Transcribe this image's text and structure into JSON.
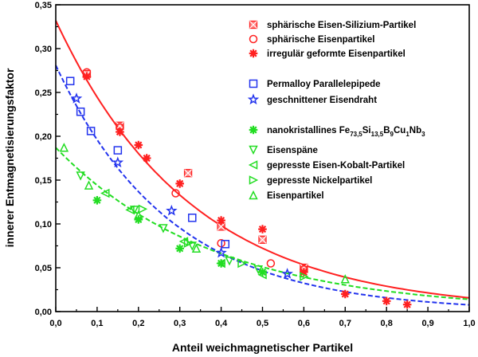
{
  "chart_data": {
    "type": "scatter",
    "title": "",
    "xlabel": "Anteil weichmagnetischer Partikel",
    "ylabel": "innerer Entmagnetisierungsfaktor",
    "xlim": [
      0.0,
      1.0
    ],
    "ylim": [
      0.0,
      0.35
    ],
    "x_ticks": [
      "0,0",
      "0,1",
      "0,2",
      "0,3",
      "0,4",
      "0,5",
      "0,6",
      "0,7",
      "0,8",
      "0,9",
      "1,0"
    ],
    "y_ticks": [
      "0,00",
      "0,05",
      "0,10",
      "0,15",
      "0,20",
      "0,25",
      "0,30",
      "0,35"
    ],
    "grid": false,
    "legend_position": "top-right",
    "colors": {
      "red": "#ff2020",
      "blue": "#2233ee",
      "green": "#22dd22"
    },
    "series": [
      {
        "name": "sphärische Eisen-Silizium-Partikel",
        "color": "#ff2020",
        "marker": "boxed-x",
        "x": [
          0.075,
          0.155,
          0.32,
          0.4,
          0.5,
          0.6
        ],
        "y": [
          0.271,
          0.212,
          0.158,
          0.097,
          0.082,
          0.05
        ]
      },
      {
        "name": "sphärische Eisenpartikel",
        "color": "#ff2020",
        "marker": "circle",
        "x": [
          0.075,
          0.155,
          0.29,
          0.4,
          0.52,
          0.6
        ],
        "y": [
          0.273,
          0.21,
          0.135,
          0.078,
          0.055,
          0.048
        ]
      },
      {
        "name": "irregulär geformte Eisenpartikel",
        "color": "#ff2020",
        "marker": "star",
        "x": [
          0.075,
          0.155,
          0.2,
          0.22,
          0.3,
          0.4,
          0.5,
          0.6,
          0.7,
          0.8,
          0.85
        ],
        "y": [
          0.268,
          0.205,
          0.19,
          0.175,
          0.146,
          0.104,
          0.094,
          0.045,
          0.02,
          0.012,
          0.008
        ]
      },
      {
        "name": "Permalloy Parallelepipede",
        "color": "#2233ee",
        "marker": "square",
        "x": [
          0.035,
          0.06,
          0.085,
          0.15,
          0.33,
          0.41
        ],
        "y": [
          0.263,
          0.228,
          0.206,
          0.184,
          0.107,
          0.077
        ]
      },
      {
        "name": "geschnittener Eisendraht",
        "color": "#2233ee",
        "marker": "star5",
        "x": [
          0.05,
          0.15,
          0.28,
          0.4,
          0.56
        ],
        "y": [
          0.243,
          0.17,
          0.115,
          0.067,
          0.043
        ]
      },
      {
        "name": "nanokristallines Fe73,5Si13,5B9Cu1Nb3",
        "color": "#22dd22",
        "marker": "star",
        "x": [
          0.1,
          0.2,
          0.3,
          0.4,
          0.5
        ],
        "y": [
          0.127,
          0.105,
          0.072,
          0.055,
          0.045
        ]
      },
      {
        "name": "Eisenspäne",
        "color": "#22dd22",
        "marker": "triangle-down",
        "x": [
          0.06,
          0.19,
          0.26,
          0.33,
          0.42,
          0.49
        ],
        "y": [
          0.155,
          0.116,
          0.095,
          0.075,
          0.058,
          0.048
        ]
      },
      {
        "name": "gepresste Eisen-Kobalt-Partikel",
        "color": "#22dd22",
        "marker": "triangle-left",
        "x": [
          0.12,
          0.18,
          0.31,
          0.4,
          0.5
        ],
        "y": [
          0.135,
          0.116,
          0.08,
          0.055,
          0.042
        ]
      },
      {
        "name": "gepresste Nickelpartikel",
        "color": "#22dd22",
        "marker": "triangle-right",
        "x": [
          0.21,
          0.32,
          0.45,
          0.6
        ],
        "y": [
          0.117,
          0.078,
          0.055,
          0.04
        ]
      },
      {
        "name": "Eisenpartikel",
        "color": "#22dd22",
        "marker": "triangle-up",
        "x": [
          0.02,
          0.08,
          0.2,
          0.34,
          0.7
        ],
        "y": [
          0.187,
          0.144,
          0.11,
          0.072,
          0.037
        ]
      }
    ],
    "fit_curves": [
      {
        "color": "#ff2020",
        "style": "solid",
        "model": "y = a*exp(-b*x)",
        "a": 0.332,
        "b": 3.05
      },
      {
        "color": "#2233ee",
        "style": "dashed",
        "model": "y = a*exp(-b*x)",
        "a": 0.281,
        "b": 3.6
      },
      {
        "color": "#22dd22",
        "style": "dashed",
        "model": "y = a*exp(-b*x)",
        "a": 0.187,
        "b": 2.6
      }
    ]
  },
  "legend": {
    "group1": [
      {
        "label": "sphärische Eisen-Silizium-Partikel",
        "marker": "boxed-x",
        "color": "#ff2020"
      },
      {
        "label": "sphärische Eisenpartikel",
        "marker": "circle",
        "color": "#ff2020"
      },
      {
        "label": "irregulär geformte Eisenpartikel",
        "marker": "star",
        "color": "#ff2020"
      }
    ],
    "group2": [
      {
        "label": "Permalloy Parallelepipede",
        "marker": "square",
        "color": "#2233ee"
      },
      {
        "label": "geschnittener Eisendraht",
        "marker": "star5",
        "color": "#2233ee"
      }
    ],
    "nano": {
      "prefix": "nanokristallines Fe",
      "sub1": "73,5",
      "mid1": "Si",
      "sub2": "13,5",
      "mid2": "B",
      "sub3": "9",
      "mid3": "Cu",
      "sub4": "1",
      "mid4": "Nb",
      "sub5": "3",
      "marker": "star",
      "color": "#22dd22"
    },
    "group3": [
      {
        "label": "Eisenspäne",
        "marker": "triangle-down",
        "color": "#22dd22"
      },
      {
        "label": "gepresste Eisen-Kobalt-Partikel",
        "marker": "triangle-left",
        "color": "#22dd22"
      },
      {
        "label": "gepresste Nickelpartikel",
        "marker": "triangle-right",
        "color": "#22dd22"
      },
      {
        "label": "Eisenpartikel",
        "marker": "triangle-up",
        "color": "#22dd22"
      }
    ]
  }
}
